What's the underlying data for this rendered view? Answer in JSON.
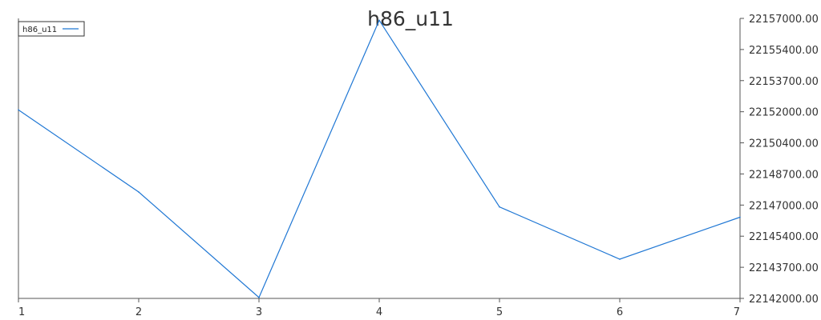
{
  "chart_data": {
    "type": "line",
    "title": "h86_u11",
    "xlabel": "",
    "ylabel": "",
    "x": [
      1,
      2,
      3,
      4,
      5,
      6,
      7
    ],
    "series": [
      {
        "name": "h86_u11",
        "color": "#1f77d4",
        "values": [
          22152100,
          22147700,
          22142050,
          22156900,
          22146900,
          22144100,
          22146350
        ]
      }
    ],
    "x_ticks": [
      "1",
      "2",
      "3",
      "4",
      "5",
      "6",
      "7"
    ],
    "y_ticks": [
      "22157000.00",
      "22155400.00",
      "22153700.00",
      "22152000.00",
      "22150400.00",
      "22148700.00",
      "22147000.00",
      "22145400.00",
      "22143700.00",
      "22142000.00"
    ],
    "xlim": [
      1,
      7
    ],
    "ylim": [
      22142000,
      22157000
    ],
    "y_axis_side": "right",
    "grid": false,
    "legend_position": "top-left"
  }
}
